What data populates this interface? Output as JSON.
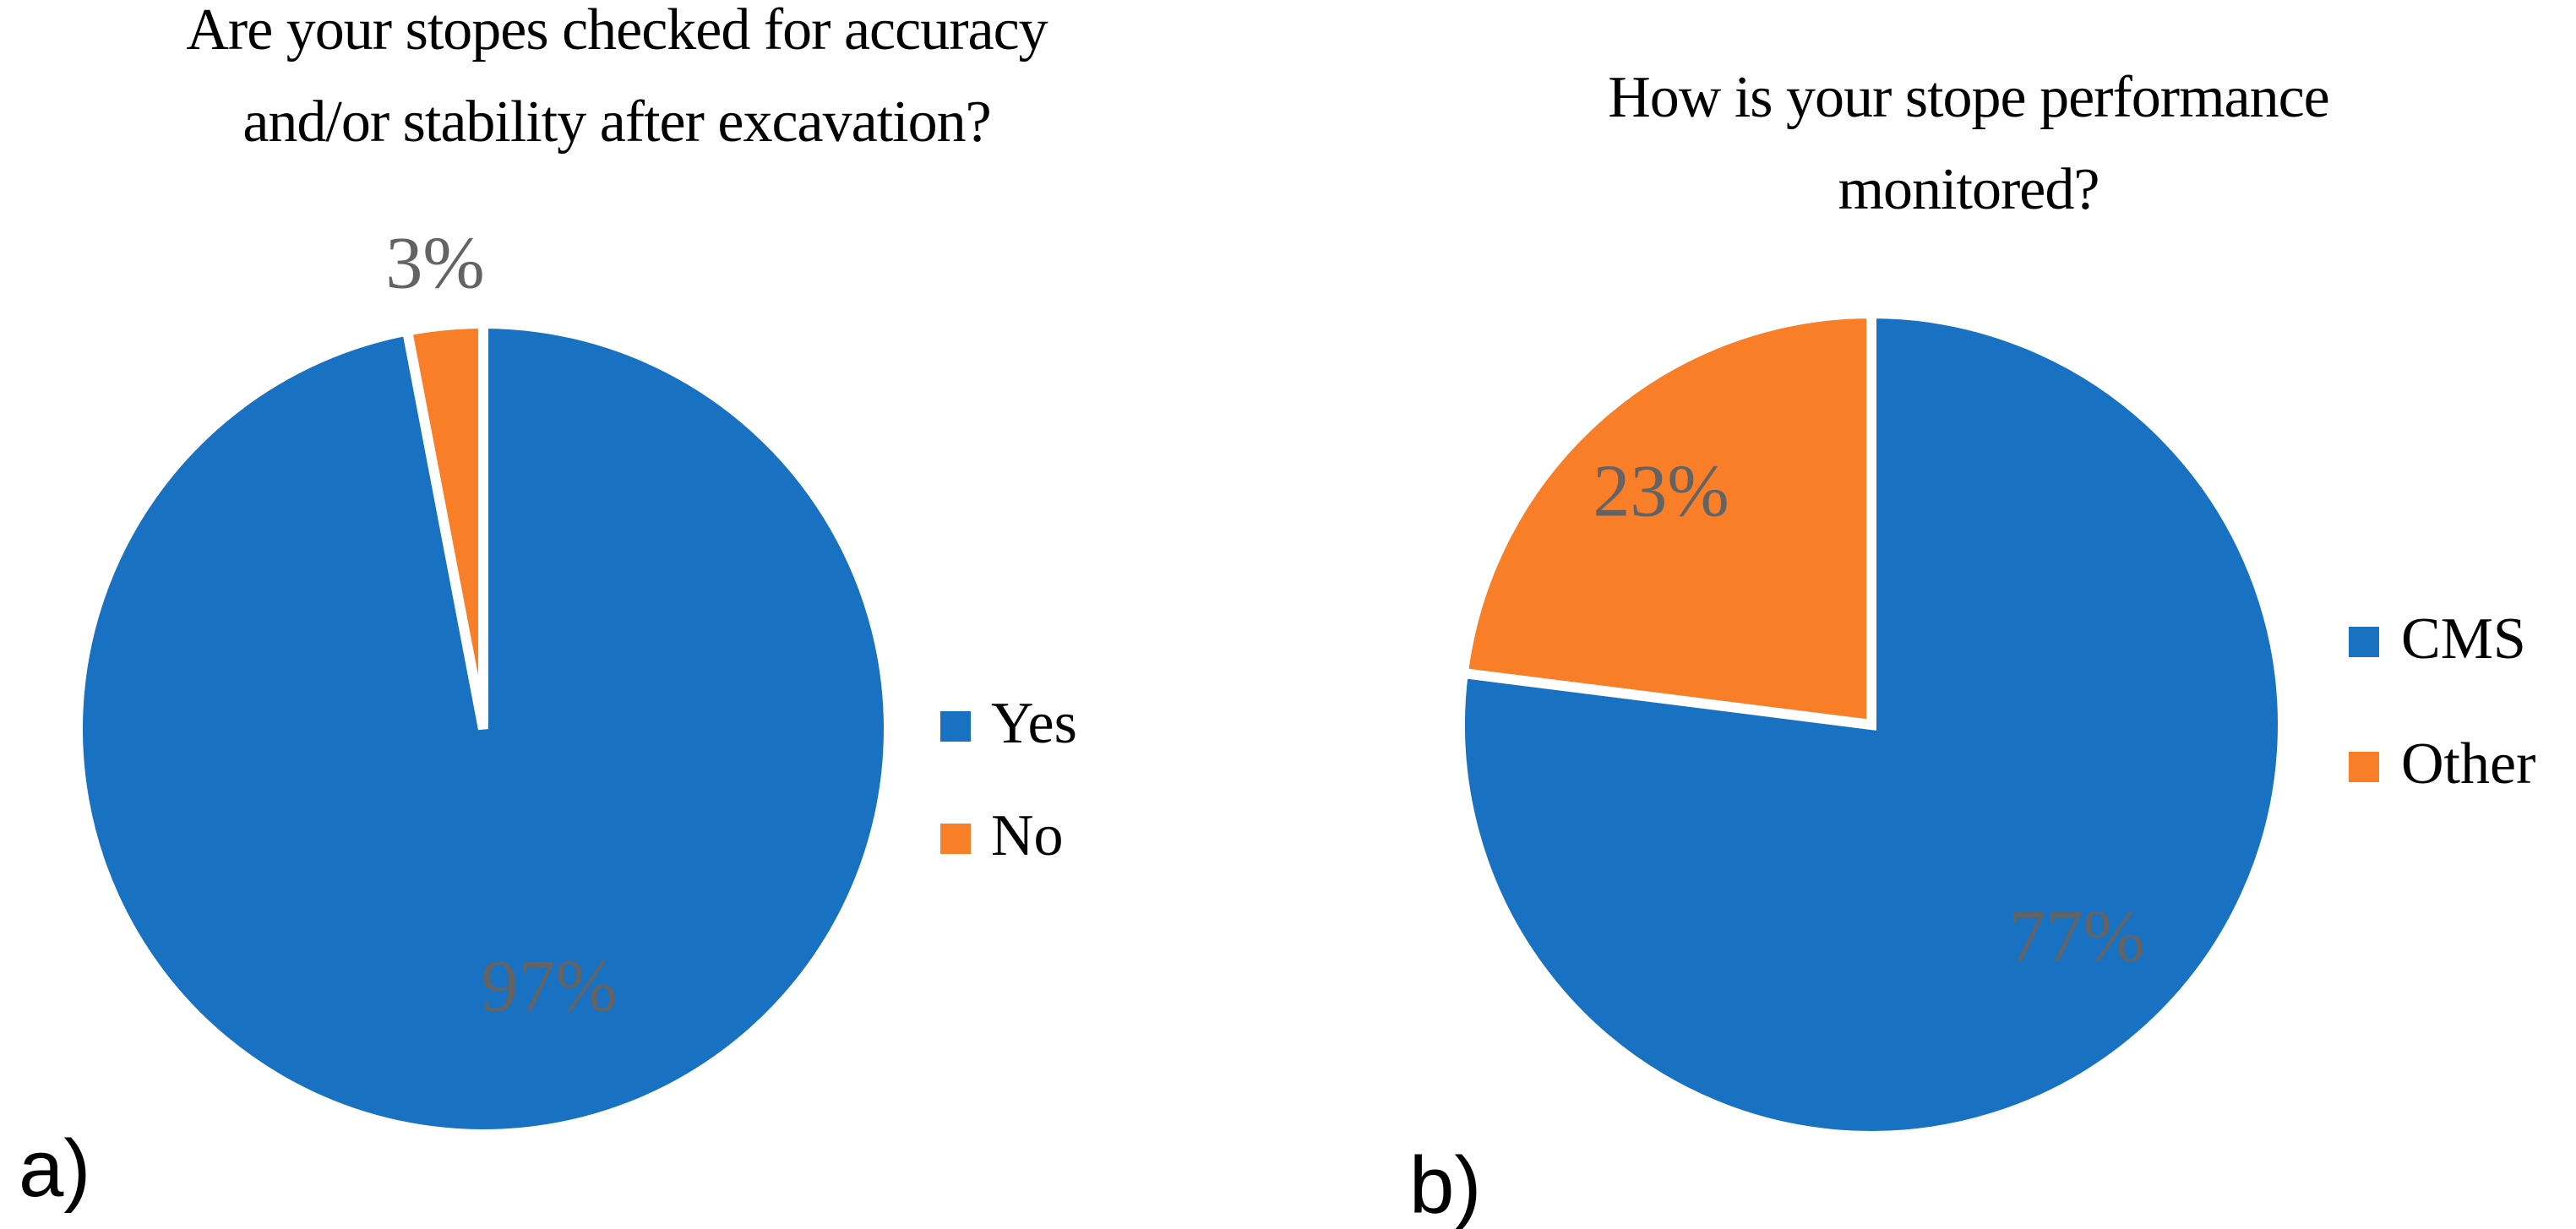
{
  "figure": {
    "background": "#FFFFFF",
    "panel_labels": [
      "a)",
      "b)"
    ],
    "label_color": "#636363",
    "series_colors": {
      "blue": "#1971C2",
      "orange": "#F87E28"
    }
  },
  "chart_data": [
    {
      "type": "pie",
      "title": "Are your stopes checked for accuracy and/or stability after excavation?",
      "title_lines": [
        "Are your stopes checked for accuracy",
        "and/or stability after excavation?"
      ],
      "categories": [
        "Yes",
        "No"
      ],
      "values": [
        97,
        3
      ],
      "unit": "%",
      "data_labels": [
        "97%",
        "3%"
      ],
      "colors": [
        "#1971C2",
        "#F87E28"
      ],
      "legend_position": "right",
      "start_angle": "12 o'clock",
      "direction": "clockwise",
      "slice_border_color": "#FFFFFF"
    },
    {
      "type": "pie",
      "title": "How is your stope performance monitored?",
      "title_lines": [
        "How is your stope performance",
        "monitored?"
      ],
      "categories": [
        "CMS",
        "Other"
      ],
      "values": [
        77,
        23
      ],
      "unit": "%",
      "data_labels": [
        "77%",
        "23%"
      ],
      "colors": [
        "#1971C2",
        "#F87E28"
      ],
      "legend_position": "right",
      "start_angle": "12 o'clock",
      "direction": "clockwise",
      "slice_border_color": "#FFFFFF"
    }
  ]
}
